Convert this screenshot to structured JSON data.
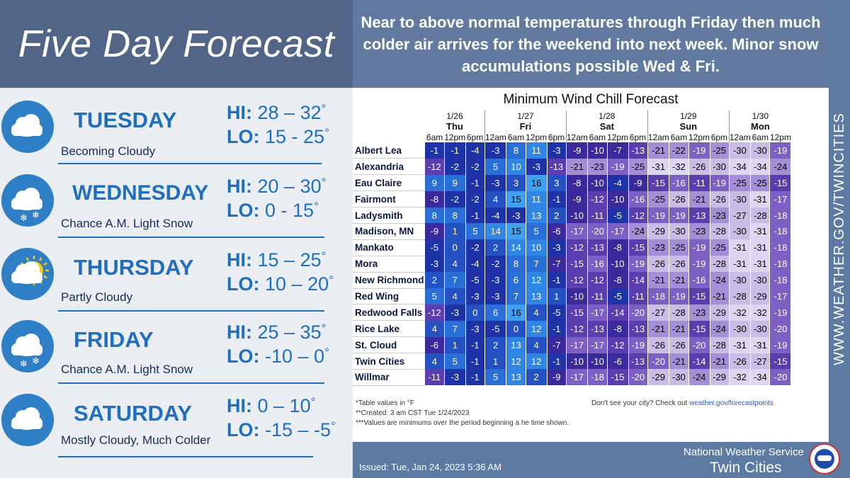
{
  "title": "Five Day Forecast",
  "headline": "Near to above normal temperatures through Friday then much colder air arrives for the weekend into next week. Minor snow accumulations possible Wed & Fri.",
  "sidebar_url": "WWW.WEATHER.GOV/TWINCITIES",
  "days": [
    {
      "name": "TUESDAY",
      "desc": "Becoming Cloudy",
      "hi_label": "HI:",
      "hi": "28 – 32",
      "lo_label": "LO:",
      "lo": "15 - 25",
      "icon": "cloud-icon"
    },
    {
      "name": "WEDNESDAY",
      "desc": "Chance A.M. Light Snow",
      "hi_label": "HI:",
      "hi": "20 – 30",
      "lo_label": "LO:",
      "lo": "0 - 15",
      "icon": "cloud-snow-icon"
    },
    {
      "name": "THURSDAY",
      "desc": "Partly Cloudy",
      "hi_label": "HI:",
      "hi": "15 – 25",
      "lo_label": "LO:",
      "lo": "10 – 20",
      "icon": "partly-cloudy-icon"
    },
    {
      "name": "FRIDAY",
      "desc": "Chance A.M. Light Snow",
      "hi_label": "HI:",
      "hi": "25 – 35",
      "lo_label": "LO:",
      "lo": "-10 – 0",
      "icon": "cloud-snow-icon"
    },
    {
      "name": "SATURDAY",
      "desc": "Mostly Cloudy, Much Colder",
      "hi_label": "HI:",
      "hi": "0 – 10",
      "lo_label": "LO:",
      "lo": "-15 – -5",
      "icon": "cloud-icon"
    }
  ],
  "degree": "°",
  "wind_chill": {
    "title": "Minimum Wind Chill Forecast",
    "dates": [
      {
        "date": "1/26",
        "day": "Thu",
        "times": [
          "6am",
          "12pm",
          "6pm"
        ]
      },
      {
        "date": "1/27",
        "day": "Fri",
        "times": [
          "12am",
          "6am",
          "12pm",
          "6pm"
        ]
      },
      {
        "date": "1/28",
        "day": "Sat",
        "times": [
          "12am",
          "6am",
          "12pm",
          "6pm"
        ]
      },
      {
        "date": "1/29",
        "day": "Sun",
        "times": [
          "12am",
          "6am",
          "12pm",
          "6pm"
        ]
      },
      {
        "date": "1/30",
        "day": "Mon",
        "times": [
          "12am",
          "6am",
          "12pm"
        ]
      }
    ],
    "rows": [
      {
        "city": "Albert Lea",
        "values": [
          -1,
          -1,
          -4,
          -3,
          8,
          11,
          -3,
          -9,
          -10,
          -7,
          -13,
          -21,
          -22,
          -19,
          -25,
          -30,
          -30,
          -19
        ]
      },
      {
        "city": "Alexandria",
        "values": [
          -12,
          -2,
          -2,
          5,
          10,
          -3,
          -13,
          -21,
          -23,
          -19,
          -25,
          -31,
          -32,
          -26,
          -30,
          -34,
          -34,
          -24
        ]
      },
      {
        "city": "Eau Claire",
        "values": [
          9,
          9,
          -1,
          -3,
          3,
          16,
          3,
          -8,
          -10,
          -4,
          -9,
          -15,
          -16,
          -11,
          -19,
          -25,
          -25,
          -15
        ]
      },
      {
        "city": "Fairmont",
        "values": [
          -8,
          -2,
          -2,
          4,
          15,
          11,
          -1,
          -9,
          -12,
          -10,
          -16,
          -25,
          -26,
          -21,
          -26,
          -30,
          -31,
          -17
        ]
      },
      {
        "city": "Ladysmith",
        "values": [
          8,
          8,
          -1,
          -4,
          -3,
          13,
          2,
          -10,
          -11,
          -5,
          -12,
          -19,
          -19,
          -13,
          -23,
          -27,
          -28,
          -18
        ]
      },
      {
        "city": "Madison, MN",
        "values": [
          -9,
          1,
          5,
          14,
          15,
          5,
          -6,
          -17,
          -20,
          -17,
          -24,
          -29,
          -30,
          -23,
          -28,
          -30,
          -31,
          -18
        ]
      },
      {
        "city": "Mankato",
        "values": [
          -5,
          0,
          -2,
          2,
          14,
          10,
          -3,
          -12,
          -13,
          -8,
          -15,
          -23,
          -25,
          -19,
          -25,
          -31,
          -31,
          -18
        ]
      },
      {
        "city": "Mora",
        "values": [
          -3,
          4,
          -4,
          -2,
          8,
          7,
          -7,
          -15,
          -16,
          -10,
          -19,
          -26,
          -26,
          -19,
          -28,
          -31,
          -31,
          -18
        ]
      },
      {
        "city": "New Richmond",
        "values": [
          2,
          7,
          -5,
          -3,
          6,
          12,
          -1,
          -12,
          -12,
          -8,
          -14,
          -21,
          -21,
          -16,
          -24,
          -30,
          -30,
          -18
        ]
      },
      {
        "city": "Red Wing",
        "values": [
          5,
          4,
          -3,
          -3,
          7,
          13,
          1,
          -10,
          -11,
          -5,
          -11,
          -18,
          -19,
          -15,
          -21,
          -28,
          -29,
          -17
        ]
      },
      {
        "city": "Redwood Falls",
        "values": [
          -12,
          -3,
          0,
          6,
          16,
          4,
          -5,
          -15,
          -17,
          -14,
          -20,
          -27,
          -28,
          -23,
          -29,
          -32,
          -32,
          -19
        ]
      },
      {
        "city": "Rice Lake",
        "values": [
          4,
          7,
          -3,
          -5,
          0,
          12,
          -1,
          -12,
          -13,
          -8,
          -13,
          -21,
          -21,
          -15,
          -24,
          -30,
          -30,
          -20
        ]
      },
      {
        "city": "St. Cloud",
        "values": [
          -6,
          1,
          -1,
          2,
          13,
          4,
          -7,
          -17,
          -17,
          -12,
          -19,
          -26,
          -26,
          -20,
          -28,
          -31,
          -31,
          -19
        ]
      },
      {
        "city": "Twin Cities",
        "values": [
          4,
          5,
          -1,
          1,
          12,
          12,
          -1,
          -10,
          -10,
          -6,
          -13,
          -20,
          -21,
          -14,
          -21,
          -26,
          -27,
          -15
        ]
      },
      {
        "city": "Willmar",
        "values": [
          -11,
          -3,
          -1,
          5,
          13,
          2,
          -9,
          -17,
          -18,
          -15,
          -20,
          -29,
          -30,
          -24,
          -29,
          -32,
          -34,
          -20
        ]
      }
    ],
    "footnotes": [
      "*Table values in °F",
      "**Created: 3 am CST Tue 1/24/2023",
      "***Values are minimums over the period beginning a  he time shown."
    ],
    "cta_text": "Don't see your city? Check out",
    "cta_link": "weather.gov/forecastpoints"
  },
  "issued": "Issued: Tue, Jan 24, 2023 5:36 AM",
  "office_line1": "National Weather Service",
  "office_line2": "Twin Cities",
  "colors": {
    "title_bar": "#536587",
    "accent": "#1f6fc0",
    "panel_bg": "#6279a0"
  }
}
